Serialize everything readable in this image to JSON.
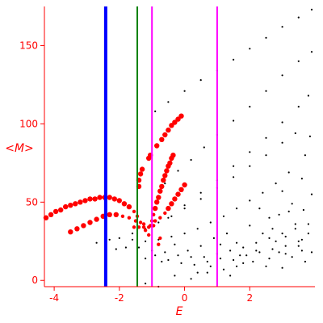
{
  "chart_data": {
    "type": "scatter",
    "title": "",
    "xlabel": "E",
    "ylabel": "<M>",
    "xlim": [
      -4.3,
      4.0
    ],
    "ylim": [
      -4,
      175
    ],
    "xticks": [
      -4,
      -2,
      0,
      2
    ],
    "yticks": [
      0,
      50,
      100,
      150
    ],
    "xtick_labels": [
      "-4",
      "-2",
      "0",
      "2"
    ],
    "ytick_labels": [
      "0",
      "50",
      "100",
      "150"
    ],
    "axis_color": "#ff0000",
    "vertical_lines": [
      {
        "x": -2.42,
        "color": "#0000ff"
      },
      {
        "x": -1.45,
        "color": "#008000"
      },
      {
        "x": -1.0,
        "color": "#ff00ff"
      },
      {
        "x": 1.0,
        "color": "#ff00ff"
      }
    ],
    "series": [
      {
        "color": "#000000",
        "points": [
          [
            -0.9,
            108
          ],
          [
            -0.5,
            114
          ],
          [
            0.0,
            121
          ],
          [
            0.5,
            128
          ],
          [
            1.0,
            134
          ],
          [
            1.5,
            141
          ],
          [
            2.0,
            148
          ],
          [
            2.5,
            155
          ],
          [
            3.0,
            162
          ],
          [
            3.5,
            168
          ],
          [
            3.9,
            173
          ],
          [
            -0.6,
            62
          ],
          [
            -0.2,
            70
          ],
          [
            0.2,
            77
          ],
          [
            0.6,
            85
          ],
          [
            1.0,
            93
          ],
          [
            1.5,
            102
          ],
          [
            2.0,
            111
          ],
          [
            2.5,
            121
          ],
          [
            3.0,
            131
          ],
          [
            3.5,
            140
          ],
          [
            3.9,
            146
          ],
          [
            -0.5,
            40
          ],
          [
            0.0,
            48
          ],
          [
            0.5,
            56
          ],
          [
            1.0,
            64
          ],
          [
            1.5,
            73
          ],
          [
            2.0,
            82
          ],
          [
            2.5,
            91
          ],
          [
            3.0,
            101
          ],
          [
            3.5,
            111
          ],
          [
            3.8,
            118
          ],
          [
            -1.6,
            30
          ],
          [
            -1.2,
            33
          ],
          [
            -0.8,
            37
          ],
          [
            -0.4,
            41
          ],
          [
            0.0,
            46
          ],
          [
            0.5,
            52
          ],
          [
            1.0,
            59
          ],
          [
            1.5,
            66
          ],
          [
            2.0,
            73
          ],
          [
            2.5,
            80
          ],
          [
            3.0,
            88
          ],
          [
            3.4,
            94
          ],
          [
            -2.7,
            24
          ],
          [
            -2.3,
            26
          ],
          [
            -2.0,
            27
          ],
          [
            -1.6,
            26
          ],
          [
            -1.2,
            25
          ],
          [
            -0.8,
            26
          ],
          [
            -0.4,
            28
          ],
          [
            0.0,
            30
          ],
          [
            0.4,
            33
          ],
          [
            0.8,
            37
          ],
          [
            1.2,
            41
          ],
          [
            1.6,
            46
          ],
          [
            2.0,
            51
          ],
          [
            2.4,
            56
          ],
          [
            2.8,
            62
          ],
          [
            3.2,
            69
          ],
          [
            -2.1,
            20
          ],
          [
            -1.8,
            21
          ],
          [
            -1.4,
            21
          ],
          [
            -1.0,
            19
          ],
          [
            -0.6,
            18
          ],
          [
            -0.2,
            16
          ],
          [
            0.2,
            15
          ],
          [
            0.6,
            15
          ],
          [
            1.0,
            17
          ],
          [
            1.4,
            19
          ],
          [
            1.8,
            21
          ],
          [
            2.2,
            24
          ],
          [
            2.6,
            27
          ],
          [
            3.0,
            30
          ],
          [
            3.4,
            33
          ],
          [
            3.8,
            36
          ],
          [
            -1.2,
            14
          ],
          [
            -0.9,
            16
          ],
          [
            -0.5,
            13
          ],
          [
            -0.1,
            11
          ],
          [
            0.3,
            10
          ],
          [
            0.7,
            12
          ],
          [
            1.1,
            14
          ],
          [
            1.5,
            13
          ],
          [
            1.9,
            16
          ],
          [
            2.3,
            18
          ],
          [
            2.7,
            20
          ],
          [
            3.1,
            22
          ],
          [
            3.5,
            25
          ],
          [
            -1.2,
            -2
          ],
          [
            -0.8,
            -4
          ],
          [
            -0.3,
            3
          ],
          [
            0.2,
            1
          ],
          [
            0.7,
            5
          ],
          [
            1.2,
            7
          ],
          [
            1.6,
            9
          ],
          [
            2.1,
            12
          ],
          [
            2.6,
            14
          ],
          [
            3.1,
            17
          ],
          [
            3.6,
            19
          ],
          [
            3.85,
            92
          ],
          [
            3.7,
            80
          ],
          [
            3.6,
            65
          ],
          [
            3.9,
            55
          ],
          [
            3.3,
            49
          ],
          [
            3.65,
            45
          ],
          [
            2.9,
            42
          ],
          [
            3.4,
            36
          ],
          [
            3.8,
            30
          ],
          [
            2.7,
            33
          ],
          [
            3.1,
            28
          ],
          [
            3.5,
            22
          ],
          [
            3.9,
            18
          ],
          [
            2.4,
            30
          ],
          [
            2.8,
            25
          ],
          [
            3.3,
            15
          ],
          [
            3.7,
            12
          ],
          [
            2.2,
            19
          ],
          [
            1.6,
            24
          ],
          [
            1.3,
            30
          ],
          [
            0.9,
            27
          ],
          [
            0.5,
            22
          ],
          [
            0.1,
            19
          ],
          [
            -0.3,
            23
          ],
          [
            -0.7,
            12
          ],
          [
            1.8,
            11
          ],
          [
            2.5,
            9
          ],
          [
            3.0,
            8
          ],
          [
            0.4,
            5
          ],
          [
            1.4,
            3
          ],
          [
            2.0,
            35
          ],
          [
            2.6,
            40
          ],
          [
            3.2,
            44
          ],
          [
            1.1,
            23
          ],
          [
            2.9,
            18
          ],
          [
            3.6,
            26
          ],
          [
            1.7,
            16
          ],
          [
            0.8,
            9
          ],
          [
            2.3,
            46
          ],
          [
            3.0,
            57
          ]
        ]
      },
      {
        "color": "#ff0000",
        "points": [
          [
            -4.25,
            40
          ],
          [
            -4.1,
            42
          ],
          [
            -3.95,
            44
          ],
          [
            -3.8,
            45
          ],
          [
            -3.65,
            47
          ],
          [
            -3.5,
            48
          ],
          [
            -3.35,
            49
          ],
          [
            -3.2,
            50
          ],
          [
            -3.05,
            51
          ],
          [
            -2.9,
            52
          ],
          [
            -2.75,
            52
          ],
          [
            -2.6,
            53
          ],
          [
            -2.45,
            53
          ],
          [
            -2.3,
            53
          ],
          [
            -2.15,
            52
          ],
          [
            -2.0,
            51
          ],
          [
            -1.85,
            49
          ],
          [
            -1.7,
            47
          ],
          [
            -1.55,
            44
          ],
          [
            -1.45,
            41
          ],
          [
            -3.5,
            31
          ],
          [
            -3.3,
            33
          ],
          [
            -3.1,
            35
          ],
          [
            -2.9,
            37
          ],
          [
            -2.7,
            39
          ],
          [
            -2.5,
            41
          ],
          [
            -2.3,
            42
          ],
          [
            -2.1,
            42
          ],
          [
            -1.9,
            41
          ],
          [
            -1.7,
            40
          ],
          [
            -1.5,
            38
          ],
          [
            -1.35,
            37
          ],
          [
            -1.25,
            36
          ],
          [
            -1.55,
            34
          ],
          [
            -1.4,
            34
          ],
          [
            -1.25,
            34
          ],
          [
            -1.1,
            34
          ],
          [
            -0.95,
            35
          ],
          [
            -1.4,
            60
          ],
          [
            -1.4,
            64
          ],
          [
            -1.35,
            68
          ],
          [
            -1.3,
            71
          ],
          [
            -1.1,
            78
          ],
          [
            -1.05,
            80
          ],
          [
            -0.85,
            86
          ],
          [
            -0.7,
            90
          ],
          [
            -0.6,
            93
          ],
          [
            -0.5,
            96
          ],
          [
            -0.4,
            99
          ],
          [
            -0.3,
            101
          ],
          [
            -0.2,
            103
          ],
          [
            -0.1,
            105
          ],
          [
            -1.0,
            38
          ],
          [
            -0.95,
            42
          ],
          [
            -0.9,
            46
          ],
          [
            -0.85,
            50
          ],
          [
            -0.8,
            53
          ],
          [
            -0.75,
            57
          ],
          [
            -0.7,
            60
          ],
          [
            -0.65,
            64
          ],
          [
            -0.6,
            67
          ],
          [
            -0.55,
            70
          ],
          [
            -0.5,
            73
          ],
          [
            -0.45,
            75
          ],
          [
            -0.4,
            78
          ],
          [
            -0.35,
            80
          ],
          [
            -1.2,
            32
          ],
          [
            -1.05,
            35
          ],
          [
            -0.9,
            38
          ],
          [
            -0.75,
            40
          ],
          [
            -0.6,
            43
          ],
          [
            -0.5,
            46
          ],
          [
            -0.4,
            49
          ],
          [
            -0.3,
            52
          ],
          [
            -0.2,
            55
          ],
          [
            -0.1,
            58
          ],
          [
            0.0,
            61
          ],
          [
            -0.8,
            23
          ],
          [
            -0.75,
            27
          ],
          [
            -1.1,
            29
          ]
        ]
      }
    ]
  }
}
